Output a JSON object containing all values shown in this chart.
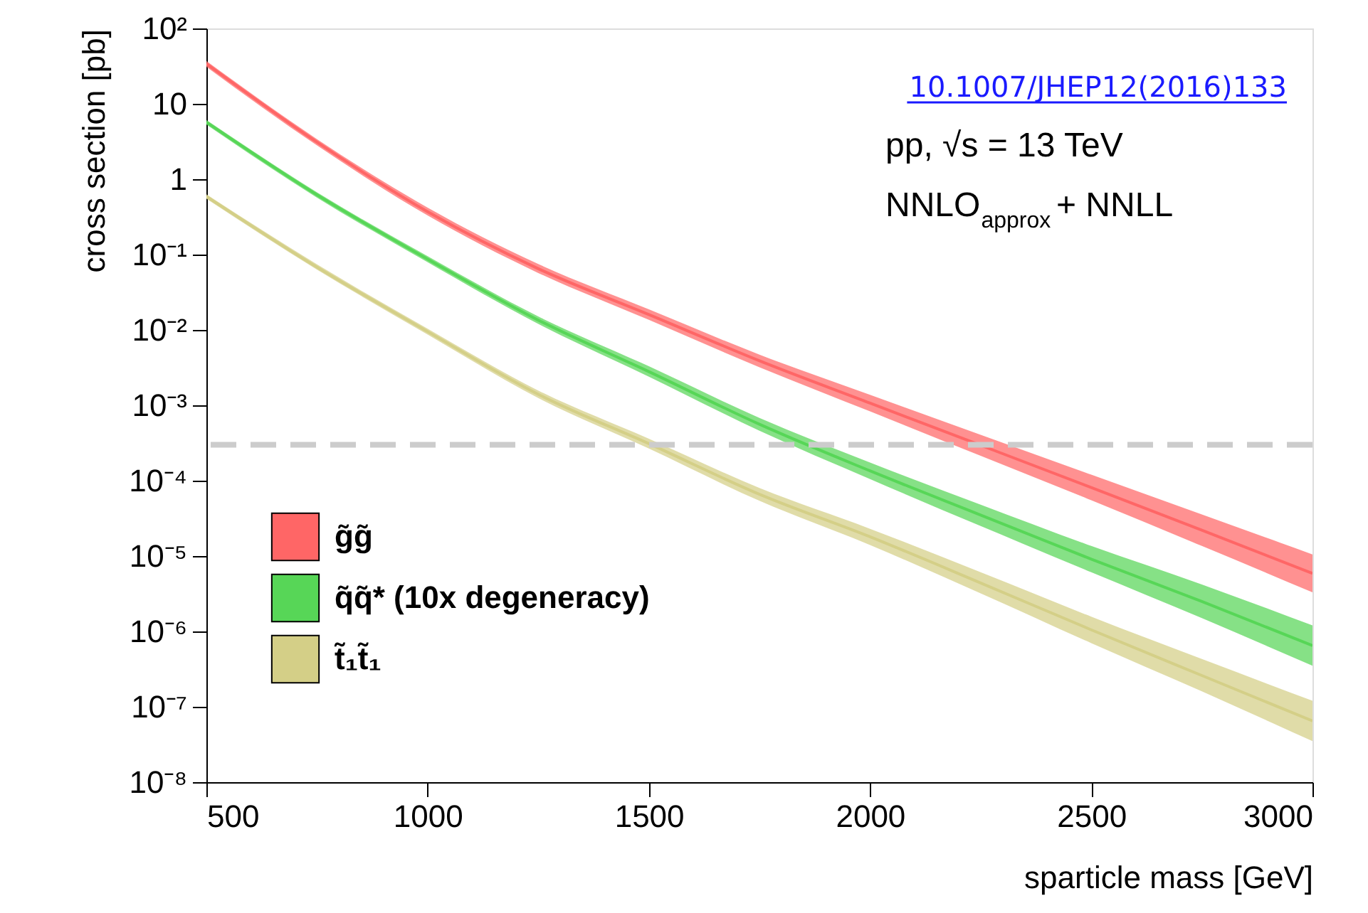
{
  "chart_data": {
    "type": "line",
    "xlabel": "sparticle mass [GeV]",
    "ylabel": "cross section [pb]",
    "x": [
      500,
      750,
      1000,
      1250,
      1500,
      1750,
      2000,
      2250,
      2500,
      2750,
      3000
    ],
    "series": [
      {
        "name": "g̃g̃",
        "color": "#ff6666",
        "values": [
          34,
          3.1,
          0.37,
          0.065,
          0.016,
          0.0039,
          0.00107,
          0.000295,
          8.1e-05,
          2.2e-05,
          5.9e-06
        ],
        "lower": [
          31,
          2.8,
          0.33,
          0.057,
          0.0136,
          0.0032,
          0.00083,
          0.000214,
          5.5e-05,
          1.36e-05,
          3.3e-06
        ],
        "upper": [
          37,
          3.4,
          0.42,
          0.075,
          0.0188,
          0.0047,
          0.00138,
          0.000407,
          0.00012,
          3.57e-05,
          1.05e-05
        ]
      },
      {
        "name": "q̃q̃* (10x degeneracy)",
        "color": "#57d657",
        "values": [
          5.7,
          0.62,
          0.087,
          0.0135,
          0.0028,
          0.00056,
          0.000135,
          3.5e-05,
          9.1e-06,
          2.5e-06,
          6.5e-07
        ],
        "lower": [
          5.3,
          0.57,
          0.079,
          0.012,
          0.0024,
          0.00046,
          0.000105,
          2.5e-05,
          6.1e-06,
          1.5e-06,
          3.5e-07
        ],
        "upper": [
          6.1,
          0.67,
          0.095,
          0.0151,
          0.0033,
          0.00068,
          0.000174,
          4.8e-05,
          1.36e-05,
          4.2e-06,
          1.2e-06
        ]
      },
      {
        "name": "t̃₁t̃₁",
        "color": "#d4cf87",
        "values": [
          0.59,
          0.068,
          0.0095,
          0.0014,
          0.00031,
          6.6e-05,
          1.8e-05,
          4.4e-06,
          1.05e-06,
          2.6e-07,
          6.5e-08
        ],
        "lower": [
          0.55,
          0.063,
          0.0087,
          0.00125,
          0.000267,
          5.4e-05,
          1.4e-05,
          3.2e-06,
          7e-07,
          1.6e-07,
          3.5e-08
        ],
        "upper": [
          0.63,
          0.074,
          0.0104,
          0.00157,
          0.00036,
          8e-05,
          2.3e-05,
          6.1e-06,
          1.57e-06,
          4.3e-07,
          1.2e-07
        ]
      }
    ],
    "xlim": [
      500,
      3000
    ],
    "xticks": [
      500,
      1000,
      1500,
      2000,
      2500,
      3000
    ],
    "ylim": [
      1e-08,
      100
    ],
    "yticks": [
      {
        "value": 100,
        "label": "10²"
      },
      10,
      1,
      {
        "value": 0.1,
        "label": "10⁻¹"
      },
      {
        "value": 0.01,
        "label": "10⁻²"
      },
      {
        "value": 0.001,
        "label": "10⁻³"
      },
      {
        "value": 0.0001,
        "label": "10⁻⁴"
      },
      {
        "value": 1e-05,
        "label": "10⁻⁵"
      },
      {
        "value": 1e-06,
        "label": "10⁻⁶"
      },
      {
        "value": 1e-07,
        "label": "10⁻⁷"
      },
      {
        "value": 1e-08,
        "label": "10⁻⁸"
      }
    ],
    "log": true,
    "grid": false,
    "legend": "bottom left",
    "ref_lines": [
      {
        "axis": "y",
        "value": 0.0003,
        "color": "#cccccc",
        "line_style": "dashed"
      }
    ],
    "annotations": [
      "10.1007/JHEP12(2016)133",
      "pp, √s = 13 TeV",
      "NNLO$_{approx}$ + NNLL"
    ]
  }
}
